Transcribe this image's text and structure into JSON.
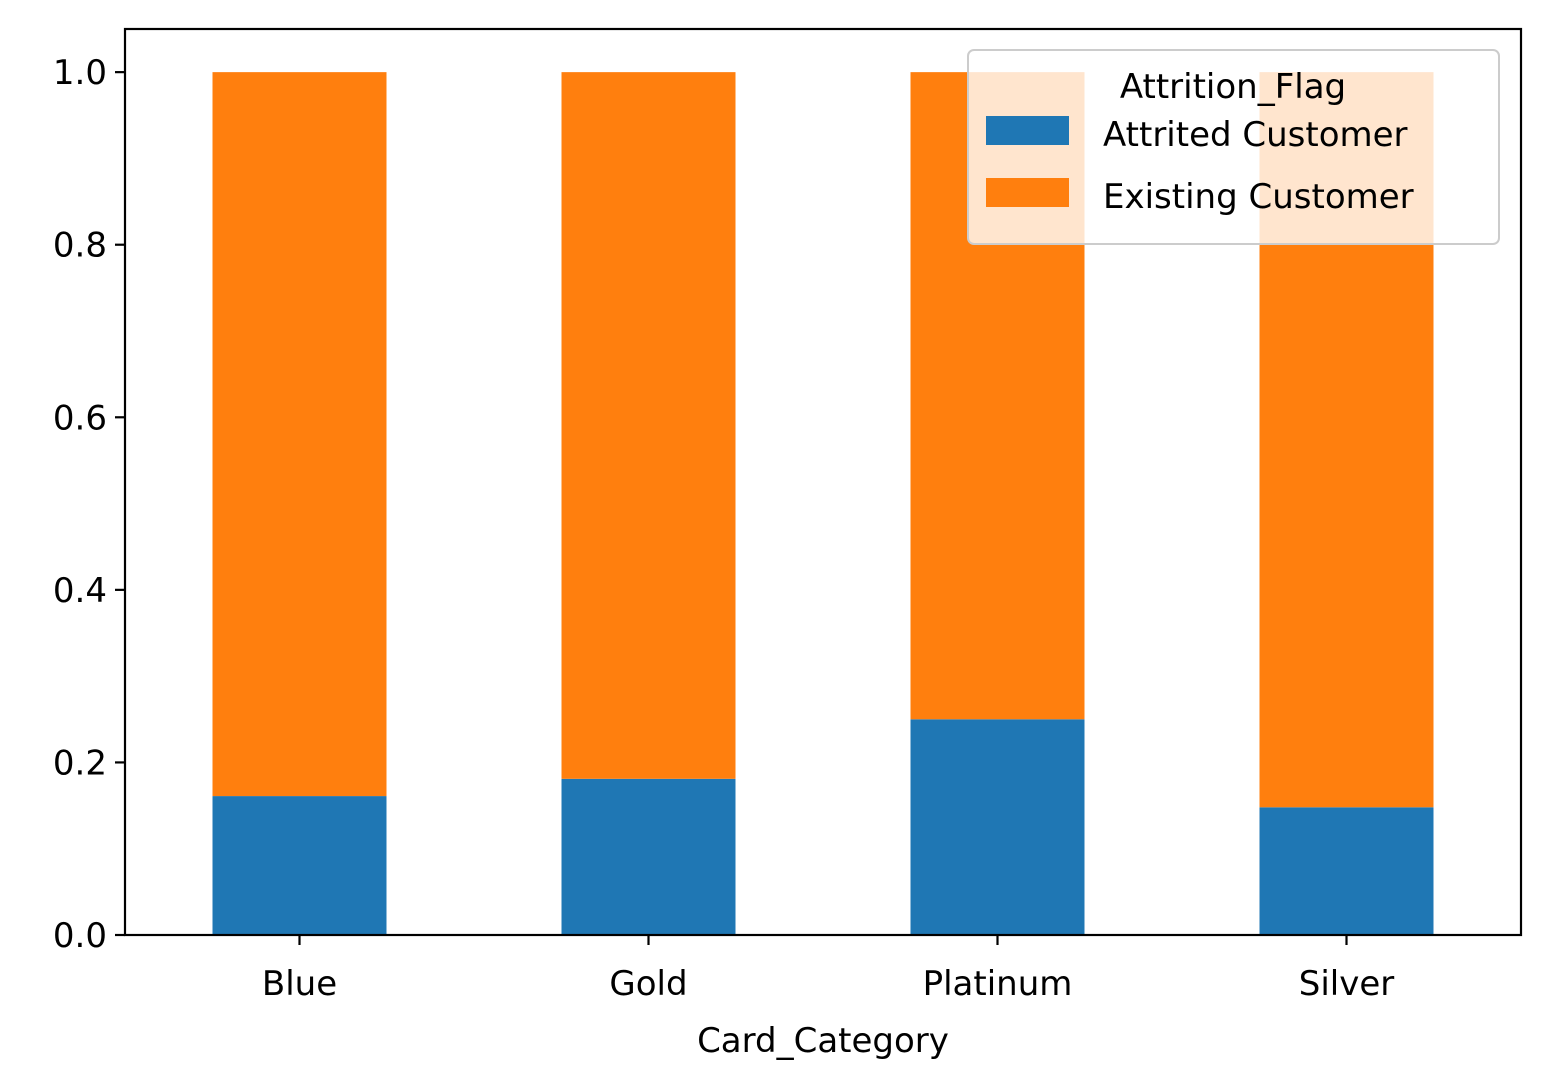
{
  "chart_data": {
    "type": "bar",
    "stacked": true,
    "categories": [
      "Blue",
      "Gold",
      "Platinum",
      "Silver"
    ],
    "series": [
      {
        "name": "Attrited Customer",
        "color": "#1f77b4",
        "values": [
          0.161,
          0.181,
          0.25,
          0.148
        ]
      },
      {
        "name": "Existing Customer",
        "color": "#ff7f0e",
        "values": [
          0.839,
          0.819,
          0.75,
          0.852
        ]
      }
    ],
    "xlabel": "Card_Category",
    "ylabel": "",
    "ylim": [
      0,
      1.05
    ],
    "yticks": [
      "0.0",
      "0.2",
      "0.4",
      "0.6",
      "0.8",
      "1.0"
    ],
    "legend": {
      "title": "Attrition_Flag",
      "placement": "top-right"
    },
    "grid": false
  }
}
